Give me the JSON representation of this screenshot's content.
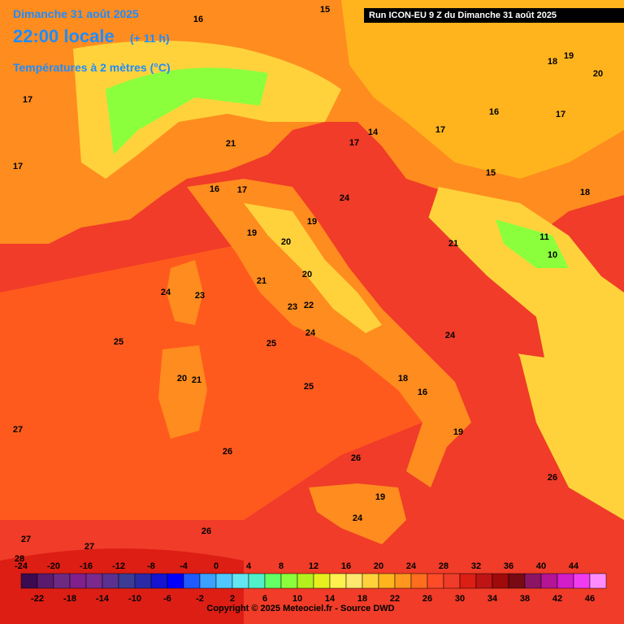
{
  "header": {
    "date": "Dimanche 31 août 2025",
    "time": "22:00 locale",
    "offset": "(+ 11 h)",
    "variable": "Températures à 2 mètres (°C)",
    "run": "Run ICON-EU 9 Z du Dimanche 31 août 2025"
  },
  "footer": {
    "copyright": "Copyright © 2025 Meteociel.fr - Source DWD"
  },
  "legend": {
    "steps": [
      {
        "value": -24,
        "color": "#3c0a50"
      },
      {
        "value": -22,
        "color": "#5a1a6e"
      },
      {
        "value": -20,
        "color": "#6e2a82"
      },
      {
        "value": -18,
        "color": "#80208c"
      },
      {
        "value": -16,
        "color": "#7a2a8c"
      },
      {
        "value": -14,
        "color": "#5a3090"
      },
      {
        "value": -12,
        "color": "#3c3c96"
      },
      {
        "value": -10,
        "color": "#2a2aa8"
      },
      {
        "value": -8,
        "color": "#1414d2"
      },
      {
        "value": -6,
        "color": "#0000ff"
      },
      {
        "value": -4,
        "color": "#1e5aff"
      },
      {
        "value": -2,
        "color": "#3ca0ff"
      },
      {
        "value": 0,
        "color": "#50c8ff"
      },
      {
        "value": 2,
        "color": "#64e6f0"
      },
      {
        "value": 4,
        "color": "#50f0c8"
      },
      {
        "value": 6,
        "color": "#64ff64"
      },
      {
        "value": 8,
        "color": "#8cff3c"
      },
      {
        "value": 10,
        "color": "#b4f01e"
      },
      {
        "value": 12,
        "color": "#e6f01e"
      },
      {
        "value": 14,
        "color": "#fff050"
      },
      {
        "value": 16,
        "color": "#ffe66e"
      },
      {
        "value": 18,
        "color": "#ffd23c"
      },
      {
        "value": 20,
        "color": "#ffb41e"
      },
      {
        "value": 22,
        "color": "#ff961e"
      },
      {
        "value": 24,
        "color": "#ff6e1e"
      },
      {
        "value": 26,
        "color": "#ff4b28"
      },
      {
        "value": 28,
        "color": "#f03c28"
      },
      {
        "value": 30,
        "color": "#dc1e14"
      },
      {
        "value": 32,
        "color": "#be1414"
      },
      {
        "value": 34,
        "color": "#a00a0a"
      },
      {
        "value": 36,
        "color": "#780a14"
      },
      {
        "value": 38,
        "color": "#8c1464"
      },
      {
        "value": 40,
        "color": "#b41496"
      },
      {
        "value": 42,
        "color": "#d21ec8"
      },
      {
        "value": 44,
        "color": "#f03cf0"
      },
      {
        "value": 46,
        "color": "#ff8cff"
      }
    ]
  },
  "map": {
    "labels": [
      16,
      15,
      18,
      19,
      20,
      17,
      16,
      17,
      17,
      21,
      17,
      14,
      17,
      16,
      17,
      24,
      15,
      18,
      19,
      19,
      20,
      21,
      11,
      10,
      20,
      21,
      24,
      23,
      23,
      22,
      24,
      24,
      25,
      25,
      20,
      21,
      25,
      18,
      16,
      27,
      19,
      26,
      26,
      26,
      19,
      24,
      26,
      27,
      27,
      28
    ]
  }
}
